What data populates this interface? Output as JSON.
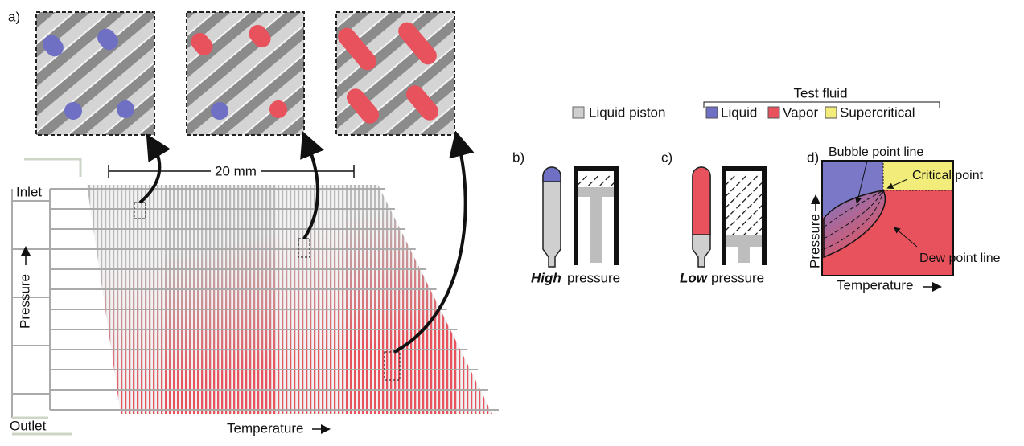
{
  "panel_a": {
    "label": "a)",
    "scale": "20 mm",
    "inlet": "Inlet",
    "outlet": "Outlet",
    "y_axis": "Pressure",
    "x_axis": "Temperature"
  },
  "legend": {
    "piston": "Liquid piston",
    "group_title": "Test fluid",
    "items": [
      "Liquid",
      "Vapor",
      "Supercritical"
    ]
  },
  "panel_b": {
    "label": "b)",
    "emphasis": "High",
    "text": "pressure"
  },
  "panel_c": {
    "label": "c)",
    "emphasis": "Low",
    "text": "pressure"
  },
  "panel_d": {
    "label": "d)",
    "bubble": "Bubble point line",
    "critical": "Critical point",
    "dew": "Dew point line",
    "y_axis": "Pressure",
    "x_axis": "Temperature"
  }
}
